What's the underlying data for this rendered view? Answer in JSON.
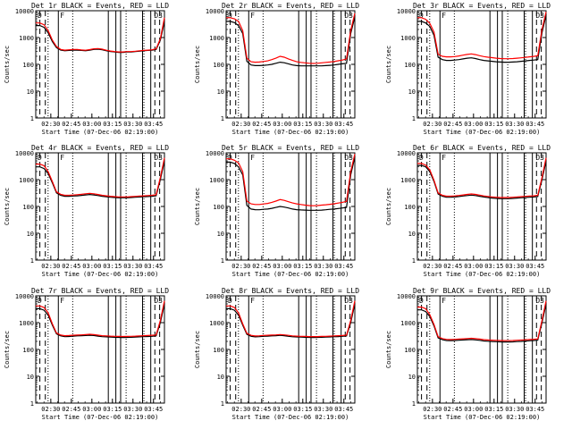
{
  "chart_data": {
    "type": "line",
    "layout": "3x3 grid",
    "log_y": true,
    "ylim": [
      1,
      10000
    ],
    "y_ticks": [
      1,
      10,
      100,
      1000,
      10000
    ],
    "y_tick_labels": [
      "1",
      "10",
      "100",
      "1000",
      "10000"
    ],
    "ylabel": "Counts/sec",
    "xlabel": "Start Time (07-Dec-06 02:19:00)",
    "x_range_minutes": [
      0,
      94
    ],
    "x_ticks_minutes": [
      11,
      26,
      41,
      56,
      71,
      86
    ],
    "x_tick_labels": [
      "02:30",
      "02:45",
      "03:00",
      "03:15",
      "03:30",
      "03:45"
    ],
    "series_colors": {
      "events": "#000000",
      "lld": "#ff0000"
    },
    "vertical_markers": {
      "solid_minutes": [
        16.5,
        53,
        58.5,
        62,
        78,
        84
      ],
      "dashed_minutes": [
        3,
        7,
        87,
        90.5
      ],
      "dotted_minutes": [
        9,
        27,
        66,
        79
      ]
    },
    "corner_labels": {
      "left": "D",
      "right": "D3",
      "flag": "F"
    },
    "panels": [
      {
        "title": "Det 1r BLACK = Events, RED = LLD",
        "events": [
          2800,
          2800,
          2400,
          1500,
          700,
          420,
          340,
          320,
          330,
          340,
          340,
          330,
          320,
          340,
          360,
          370,
          350,
          320,
          300,
          290,
          280,
          280,
          290,
          290,
          300,
          310,
          320,
          330,
          340,
          360,
          800,
          4000
        ],
        "lld": [
          3500,
          3500,
          3000,
          1800,
          800,
          460,
          360,
          340,
          350,
          360,
          360,
          345,
          335,
          355,
          380,
          390,
          370,
          335,
          315,
          300,
          290,
          290,
          300,
          300,
          310,
          320,
          330,
          340,
          350,
          380,
          900,
          5500
        ]
      },
      {
        "title": "Det 2r BLACK = Events, RED = LLD",
        "events": [
          4000,
          4000,
          3600,
          2800,
          1400,
          130,
          95,
          90,
          90,
          92,
          95,
          100,
          110,
          120,
          115,
          105,
          95,
          90,
          88,
          88,
          88,
          88,
          88,
          88,
          90,
          92,
          95,
          100,
          105,
          110,
          1400,
          6000
        ],
        "lld": [
          5500,
          5500,
          5000,
          4000,
          1800,
          170,
          125,
          120,
          122,
          128,
          135,
          150,
          170,
          200,
          185,
          160,
          140,
          125,
          118,
          114,
          110,
          108,
          110,
          114,
          118,
          122,
          128,
          136,
          145,
          160,
          1800,
          8000
        ]
      },
      {
        "title": "Det 3r BLACK = Events, RED = LLD",
        "events": [
          4000,
          4000,
          3500,
          2600,
          1200,
          185,
          150,
          140,
          140,
          145,
          150,
          160,
          170,
          175,
          165,
          150,
          140,
          135,
          130,
          125,
          122,
          120,
          120,
          122,
          125,
          130,
          135,
          140,
          145,
          150,
          1500,
          7000
        ],
        "lld": [
          5500,
          5500,
          4800,
          3400,
          1600,
          240,
          200,
          190,
          190,
          195,
          205,
          220,
          235,
          245,
          230,
          210,
          195,
          185,
          178,
          170,
          165,
          162,
          162,
          165,
          170,
          175,
          182,
          190,
          198,
          210,
          2000,
          9000
        ]
      },
      {
        "title": "Det 4r BLACK = Events, RED = LLD",
        "events": [
          3000,
          3000,
          2600,
          1700,
          750,
          320,
          260,
          240,
          240,
          245,
          250,
          260,
          270,
          280,
          270,
          255,
          240,
          230,
          220,
          215,
          210,
          210,
          210,
          215,
          220,
          225,
          230,
          235,
          240,
          250,
          1000,
          5000
        ],
        "lld": [
          3800,
          3800,
          3300,
          2000,
          850,
          350,
          285,
          262,
          262,
          268,
          275,
          285,
          298,
          310,
          298,
          280,
          262,
          250,
          240,
          233,
          228,
          228,
          228,
          233,
          238,
          244,
          250,
          256,
          262,
          275,
          1200,
          6500
        ]
      },
      {
        "title": "Det 5r BLACK = Events, RED = LLD",
        "events": [
          4500,
          4500,
          4000,
          3000,
          1500,
          110,
          80,
          76,
          75,
          78,
          80,
          85,
          92,
          100,
          95,
          88,
          80,
          76,
          74,
          73,
          72,
          72,
          72,
          73,
          75,
          78,
          80,
          84,
          88,
          92,
          1500,
          7000
        ],
        "lld": [
          6000,
          6000,
          5300,
          4200,
          2000,
          160,
          125,
          118,
          118,
          124,
          130,
          142,
          158,
          180,
          168,
          150,
          135,
          125,
          118,
          112,
          108,
          106,
          108,
          112,
          116,
          120,
          126,
          134,
          142,
          155,
          2000,
          9000
        ]
      },
      {
        "title": "Det 6r BLACK = Events, RED = LLD",
        "events": [
          3400,
          3400,
          3000,
          2000,
          850,
          290,
          240,
          220,
          220,
          225,
          235,
          245,
          255,
          265,
          255,
          240,
          225,
          215,
          205,
          200,
          195,
          195,
          195,
          200,
          205,
          210,
          215,
          220,
          225,
          235,
          1000,
          5000
        ],
        "lld": [
          4000,
          4000,
          3500,
          2300,
          950,
          320,
          262,
          242,
          242,
          248,
          258,
          270,
          282,
          292,
          282,
          265,
          248,
          236,
          226,
          220,
          215,
          215,
          215,
          220,
          226,
          232,
          238,
          244,
          250,
          262,
          1200,
          6500
        ]
      },
      {
        "title": "Det 7r BLACK = Events, RED = LLD",
        "events": [
          3300,
          3300,
          2900,
          1900,
          800,
          380,
          320,
          300,
          305,
          315,
          320,
          325,
          330,
          340,
          330,
          315,
          300,
          295,
          290,
          285,
          282,
          280,
          282,
          285,
          290,
          295,
          300,
          305,
          310,
          320,
          1000,
          5000
        ],
        "lld": [
          4200,
          4200,
          3700,
          2300,
          900,
          410,
          345,
          325,
          330,
          340,
          345,
          350,
          358,
          368,
          358,
          342,
          326,
          320,
          315,
          310,
          306,
          305,
          306,
          310,
          315,
          320,
          326,
          332,
          338,
          348,
          1200,
          6500
        ]
      },
      {
        "title": "Det 8r BLACK = Events, RED = LLD",
        "events": [
          3300,
          3300,
          2900,
          1900,
          800,
          370,
          310,
          295,
          300,
          310,
          315,
          320,
          325,
          335,
          325,
          310,
          298,
          292,
          288,
          284,
          282,
          280,
          282,
          284,
          288,
          292,
          298,
          303,
          308,
          318,
          1000,
          5000
        ],
        "lld": [
          4200,
          4200,
          3700,
          2300,
          900,
          400,
          335,
          318,
          323,
          333,
          338,
          344,
          350,
          360,
          350,
          335,
          320,
          314,
          310,
          306,
          303,
          302,
          303,
          306,
          310,
          315,
          320,
          326,
          332,
          342,
          1200,
          6500
        ]
      },
      {
        "title": "Det 9r BLACK = Events, RED = LLD",
        "events": [
          3000,
          3000,
          2600,
          1700,
          750,
          270,
          230,
          215,
          212,
          215,
          220,
          225,
          230,
          235,
          228,
          218,
          208,
          202,
          198,
          195,
          192,
          190,
          190,
          192,
          196,
          200,
          205,
          210,
          215,
          222,
          1000,
          5000
        ],
        "lld": [
          3800,
          3800,
          3300,
          2000,
          850,
          300,
          255,
          238,
          235,
          238,
          244,
          250,
          256,
          262,
          254,
          243,
          232,
          226,
          222,
          218,
          215,
          214,
          214,
          216,
          220,
          224,
          229,
          234,
          240,
          248,
          1200,
          6500
        ]
      }
    ]
  }
}
